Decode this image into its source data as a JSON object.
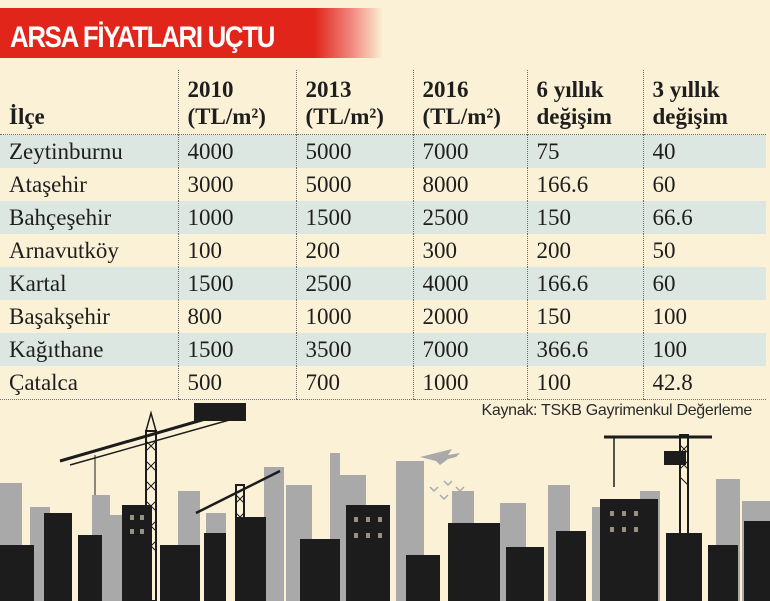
{
  "headline": "ARSA FİYATLARI UÇTU",
  "table": {
    "headers": [
      {
        "line1": "İlçe",
        "line2": ""
      },
      {
        "line1": "2010",
        "line2": "(TL/m²)"
      },
      {
        "line1": "2013",
        "line2": "(TL/m²)"
      },
      {
        "line1": "2016",
        "line2": "(TL/m²)"
      },
      {
        "line1": "6 yıllık",
        "line2": "değişim"
      },
      {
        "line1": "3 yıllık",
        "line2": "değişim"
      }
    ],
    "rows": [
      [
        "Zeytinburnu",
        "4000",
        "5000",
        "7000",
        "75",
        "40"
      ],
      [
        "Ataşehir",
        "3000",
        "5000",
        "8000",
        "166.6",
        "60"
      ],
      [
        "Bahçeşehir",
        "1000",
        "1500",
        "2500",
        "150",
        "66.6"
      ],
      [
        "Arnavutköy",
        "100",
        "200",
        "300",
        "200",
        "50"
      ],
      [
        "Kartal",
        "1500",
        "2500",
        "4000",
        "166.6",
        "60"
      ],
      [
        "Başakşehir",
        "800",
        "1000",
        "2000",
        "150",
        "100"
      ],
      [
        "Kağıthane",
        "1500",
        "3500",
        "7000",
        "366.6",
        "100"
      ],
      [
        "Çatalca",
        "500",
        "700",
        "1000",
        "100",
        "42.8"
      ]
    ]
  },
  "source": "Kaynak: TSKB Gayrimenkul Değerleme",
  "colors": {
    "banner": "#e1251b",
    "background": "#fbf1d6",
    "row_stripe": "#dde7e1",
    "skyline_dark": "#1c1c1c",
    "skyline_light": "#a9a9a9"
  },
  "illustration": {
    "icons": [
      "construction-crane-icon",
      "airplane-icon",
      "bird-flock-icon",
      "city-skyline-icon"
    ]
  }
}
